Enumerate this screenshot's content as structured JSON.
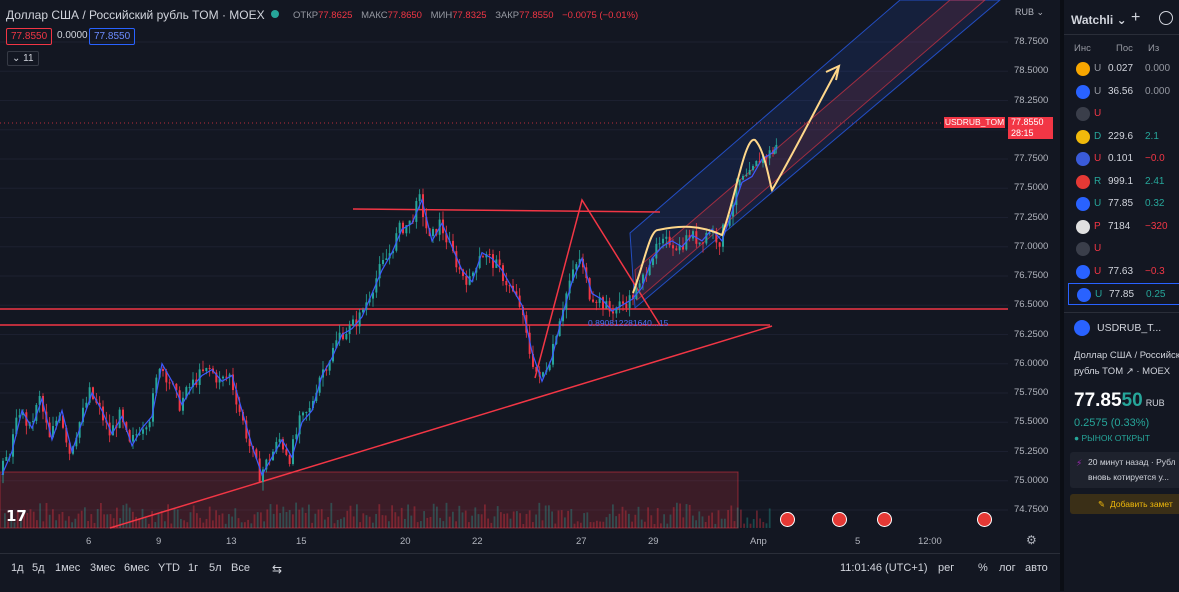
{
  "header": {
    "symbol_title": "Доллар США / Российский рубль TOM · MOEX",
    "ohlc": [
      {
        "label": "ОТКР",
        "value": "77.8625"
      },
      {
        "label": "МАКС",
        "value": "77.8650"
      },
      {
        "label": "МИН",
        "value": "77.8325"
      },
      {
        "label": "ЗАКР",
        "value": "77.8550"
      }
    ],
    "change": "−0.0075 (−0.01%)",
    "bid": "77.8550",
    "spread": "0.0000",
    "ask": "77.8550",
    "indicators_count": "11",
    "currency": "RUB"
  },
  "chart_data": {
    "type": "candlestick",
    "y_ticks": [
      "78.7500",
      "78.5000",
      "78.2500",
      "78.0000",
      "77.7500",
      "77.5000",
      "77.2500",
      "77.0000",
      "76.7500",
      "76.5000",
      "76.2500",
      "76.0000",
      "75.7500",
      "75.5000",
      "75.2500",
      "75.0000",
      "74.7500"
    ],
    "ylim": [
      74.65,
      78.85
    ],
    "x_ticks": [
      "6",
      "9",
      "13",
      "15",
      "20",
      "22",
      "27",
      "29",
      "Апр",
      "5",
      "12:00"
    ],
    "last_price_label": "USDRUB_TOM",
    "last_price": "77.8550",
    "countdown": "28:15",
    "fib_label": "0.890812281640...15",
    "close_series_points": [
      [
        0,
        75.05
      ],
      [
        10,
        75.25
      ],
      [
        20,
        75.6
      ],
      [
        30,
        75.45
      ],
      [
        40,
        75.7
      ],
      [
        50,
        75.35
      ],
      [
        60,
        75.6
      ],
      [
        70,
        75.25
      ],
      [
        80,
        75.5
      ],
      [
        90,
        75.75
      ],
      [
        100,
        75.6
      ],
      [
        110,
        75.4
      ],
      [
        120,
        75.55
      ],
      [
        130,
        75.3
      ],
      [
        140,
        75.45
      ],
      [
        150,
        75.55
      ],
      [
        160,
        76.0
      ],
      [
        170,
        75.85
      ],
      [
        180,
        75.65
      ],
      [
        190,
        75.8
      ],
      [
        200,
        75.9
      ],
      [
        210,
        75.95
      ],
      [
        220,
        75.85
      ],
      [
        230,
        75.9
      ],
      [
        240,
        75.6
      ],
      [
        250,
        75.3
      ],
      [
        260,
        75.05
      ],
      [
        270,
        75.2
      ],
      [
        280,
        75.35
      ],
      [
        290,
        75.2
      ],
      [
        300,
        75.5
      ],
      [
        310,
        75.6
      ],
      [
        320,
        75.9
      ],
      [
        330,
        76.05
      ],
      [
        340,
        76.25
      ],
      [
        350,
        76.3
      ],
      [
        360,
        76.4
      ],
      [
        370,
        76.6
      ],
      [
        380,
        76.8
      ],
      [
        390,
        76.95
      ],
      [
        400,
        77.15
      ],
      [
        410,
        77.2
      ],
      [
        420,
        77.4
      ],
      [
        430,
        77.05
      ],
      [
        440,
        77.2
      ],
      [
        450,
        77.0
      ],
      [
        460,
        76.8
      ],
      [
        470,
        76.7
      ],
      [
        480,
        76.95
      ],
      [
        490,
        76.9
      ],
      [
        500,
        76.8
      ],
      [
        510,
        76.65
      ],
      [
        520,
        76.5
      ],
      [
        530,
        76.1
      ],
      [
        540,
        75.85
      ],
      [
        550,
        76.05
      ],
      [
        560,
        76.4
      ],
      [
        570,
        76.7
      ],
      [
        580,
        76.9
      ],
      [
        590,
        76.6
      ],
      [
        600,
        76.55
      ],
      [
        610,
        76.45
      ],
      [
        620,
        76.5
      ],
      [
        630,
        76.55
      ],
      [
        640,
        76.65
      ],
      [
        650,
        76.9
      ],
      [
        660,
        77.0
      ],
      [
        670,
        77.05
      ],
      [
        680,
        77.0
      ],
      [
        690,
        77.1
      ],
      [
        700,
        77.05
      ],
      [
        710,
        77.15
      ],
      [
        720,
        77.05
      ],
      [
        730,
        77.3
      ],
      [
        740,
        77.55
      ],
      [
        750,
        77.6
      ],
      [
        760,
        77.75
      ],
      [
        770,
        77.8
      ],
      [
        775,
        77.85
      ]
    ]
  },
  "toolbar": {
    "ranges": [
      "1д",
      "5д",
      "1мес",
      "3мес",
      "6мес",
      "YTD",
      "1г",
      "5л",
      "Все"
    ],
    "time": "11:01:46 (UTC+1)",
    "session": "рег",
    "percent": "%",
    "log": "лог",
    "auto": "авто"
  },
  "watchlist": {
    "title": "Watchli",
    "cols": [
      "Инс",
      "Пос",
      "Из"
    ],
    "rows": [
      {
        "sym": "U",
        "last": "0.027",
        "chg": "0.000",
        "color": "#9598a1",
        "icon": "#f7a600"
      },
      {
        "sym": "U",
        "last": "36.56",
        "chg": "0.000",
        "color": "#9598a1",
        "icon": "#2962ff"
      },
      {
        "sym": "U",
        "last": "",
        "chg": "",
        "color": "#f23645",
        "icon": "#3a3e4a"
      },
      {
        "sym": "D",
        "last": "229.6",
        "chg": "2.1",
        "color": "#26a69a",
        "icon": "#f0b90b"
      },
      {
        "sym": "U",
        "last": "0.101",
        "chg": "−0.0",
        "color": "#f23645",
        "icon": "#3a5bd9"
      },
      {
        "sym": "R",
        "last": "999.1",
        "chg": "2.41",
        "color": "#26a69a",
        "icon": "#e53935"
      },
      {
        "sym": "U",
        "last": "77.85",
        "chg": "0.32",
        "color": "#26a69a",
        "icon": "#2962ff"
      },
      {
        "sym": "P",
        "last": "7184",
        "chg": "−320",
        "color": "#f23645",
        "icon": "#e0e0e0"
      },
      {
        "sym": "U",
        "last": "",
        "chg": "",
        "color": "#f23645",
        "icon": "#3a3e4a"
      },
      {
        "sym": "U",
        "last": "77.63",
        "chg": "−0.3",
        "color": "#f23645",
        "icon": "#2962ff"
      },
      {
        "sym": "U",
        "last": "77.85",
        "chg": "0.25",
        "color": "#26a69a",
        "icon": "#2962ff"
      }
    ]
  },
  "details": {
    "symbol": "USDRUB_T...",
    "name_line1": "Доллар США / Российский",
    "name_line2": "рубль TOM ↗ · MOEX",
    "price_main": "77.85",
    "price_tail": "50",
    "currency": "RUB",
    "change": "0.2575 (0.33%)",
    "status": "● РЫНОК ОТКРЫТ",
    "news_time": "20 минут назад · Рубл",
    "news_text": "вновь котируется у...",
    "add_note": "Добавить замет"
  },
  "colors": {
    "bg": "#131722",
    "up": "#26a69a",
    "down": "#f23645",
    "channel": "#2962ff",
    "drawing": "#f23645",
    "arrow": "#ffd78a"
  }
}
